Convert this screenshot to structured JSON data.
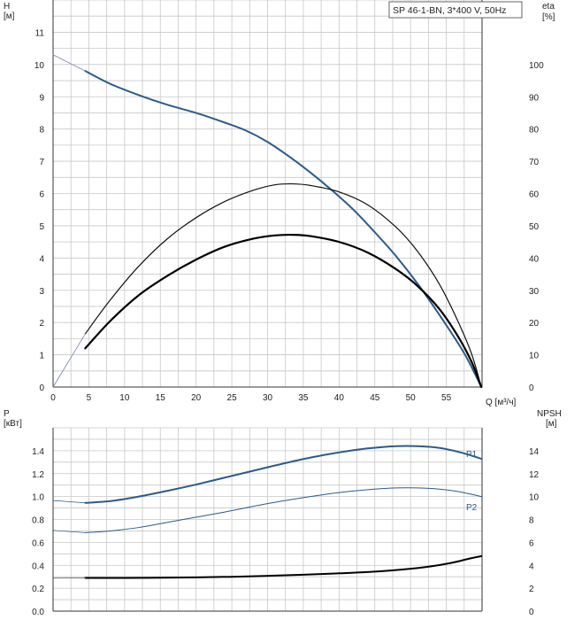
{
  "legend_box": "SP 46-1-BN, 3*400 V, 50Hz",
  "chart_data": [
    {
      "type": "line",
      "panel": "head-efficiency",
      "ylabel_left": "H",
      "yunit_left": "[м]",
      "ylabel_right": "eta",
      "yunit_right": "[%]",
      "xlabel": "Q [м³/ч]",
      "xlim": [
        0,
        60
      ],
      "ylim_left": [
        0,
        12
      ],
      "ylim_right": [
        0,
        120
      ],
      "x_ticks": [
        0,
        5,
        10,
        15,
        20,
        25,
        30,
        35,
        40,
        45,
        50,
        55
      ],
      "y_ticks_left": [
        0,
        1,
        2,
        3,
        4,
        5,
        6,
        7,
        8,
        9,
        10,
        11
      ],
      "y_ticks_right": [
        0,
        10,
        20,
        30,
        40,
        50,
        60,
        70,
        80,
        90,
        100
      ],
      "grid": true,
      "series": [
        {
          "axis": "left",
          "color": "#2c5a8a",
          "width": 2,
          "x": [
            4.5,
            8,
            12,
            16,
            20,
            24,
            27,
            30,
            33,
            36,
            39,
            42,
            45,
            48,
            51,
            54,
            57.5,
            59.9
          ],
          "y": [
            9.8,
            9.4,
            9.05,
            8.75,
            8.5,
            8.2,
            7.95,
            7.6,
            7.15,
            6.65,
            6.1,
            5.5,
            4.8,
            4.05,
            3.2,
            2.25,
            1.05,
            0
          ]
        },
        {
          "axis": "left",
          "color": "#7888aa",
          "width": 0.8,
          "x": [
            0,
            4.5
          ],
          "y": [
            10.3,
            9.8
          ]
        },
        {
          "axis": "right",
          "color": "#111111",
          "width": 1.2,
          "x": [
            4.5,
            8,
            12,
            16,
            20,
            24,
            28,
            31,
            33.5,
            36,
            40,
            44,
            48,
            51,
            54,
            56.5,
            58.5,
            59.9
          ],
          "y": [
            16.5,
            27,
            37.5,
            46,
            52.5,
            57.5,
            61,
            62.7,
            63,
            62.5,
            60.5,
            56.5,
            49.5,
            42,
            32,
            21,
            10.5,
            0
          ]
        },
        {
          "axis": "right",
          "color": "#000000",
          "width": 2.2,
          "x": [
            4.5,
            8,
            12,
            16,
            20,
            24,
            28,
            31,
            33.5,
            36,
            40,
            44,
            48,
            51,
            54,
            56.5,
            58.5,
            59.9
          ],
          "y": [
            12,
            20.5,
            28.5,
            34.5,
            39.5,
            43.5,
            46,
            47,
            47.2,
            46.8,
            45,
            41.7,
            36.5,
            31.3,
            24.3,
            16.2,
            8,
            0
          ]
        },
        {
          "axis": "right",
          "color": "#7888aa",
          "width": 0.8,
          "x": [
            0,
            4.5
          ],
          "y": [
            0,
            16.5
          ]
        }
      ]
    },
    {
      "type": "line",
      "panel": "power-npsh",
      "ylabel_left": "P",
      "yunit_left": "[кВт]",
      "ylabel_right": "NPSH",
      "yunit_right": "[м]",
      "xlim": [
        0,
        60
      ],
      "ylim_left": [
        0,
        1.6
      ],
      "ylim_right": [
        0,
        16
      ],
      "y_ticks_left": [
        "0.0",
        "0.2",
        "0.4",
        "0.6",
        "0.8",
        "1.0",
        "1.2",
        "1.4"
      ],
      "y_ticks_right": [
        0,
        2,
        4,
        6,
        8,
        10,
        12,
        14
      ],
      "grid": true,
      "series": [
        {
          "name": "P1",
          "axis": "left",
          "color": "#2c5a8a",
          "width": 2,
          "x": [
            4.5,
            8,
            12,
            16,
            20,
            24,
            28,
            32,
            36,
            40,
            44,
            48,
            51,
            54,
            57,
            59.9
          ],
          "y": [
            0.945,
            0.96,
            1.0,
            1.05,
            1.105,
            1.165,
            1.225,
            1.285,
            1.34,
            1.385,
            1.42,
            1.44,
            1.44,
            1.425,
            1.385,
            1.33
          ]
        },
        {
          "name": "P2",
          "axis": "left",
          "color": "#2c5a8a",
          "width": 1,
          "x": [
            4.5,
            8,
            12,
            16,
            20,
            24,
            28,
            32,
            36,
            40,
            44,
            48,
            51,
            54,
            57,
            59.9
          ],
          "y": [
            0.685,
            0.7,
            0.73,
            0.775,
            0.82,
            0.865,
            0.915,
            0.96,
            1.0,
            1.035,
            1.06,
            1.075,
            1.075,
            1.065,
            1.04,
            1.0
          ]
        },
        {
          "axis": "left",
          "color": "#2c5a8a",
          "width": 0.7,
          "x": [
            0,
            4.5
          ],
          "y": [
            0.965,
            0.945
          ]
        },
        {
          "axis": "left",
          "color": "#2c5a8a",
          "width": 0.7,
          "x": [
            0,
            4.5
          ],
          "y": [
            0.705,
            0.685
          ]
        },
        {
          "axis": "right",
          "color": "#000000",
          "width": 2,
          "x": [
            4.5,
            10,
            15,
            20,
            25,
            30,
            35,
            40,
            45,
            50,
            53,
            56,
            58,
            59.9
          ],
          "y": [
            2.9,
            2.9,
            2.92,
            2.95,
            3.0,
            3.08,
            3.18,
            3.3,
            3.45,
            3.7,
            3.92,
            4.25,
            4.55,
            4.8
          ]
        },
        {
          "axis": "right",
          "color": "#555555",
          "width": 0.7,
          "x": [
            0,
            4.5
          ],
          "y": [
            2.88,
            2.9
          ]
        }
      ]
    }
  ]
}
